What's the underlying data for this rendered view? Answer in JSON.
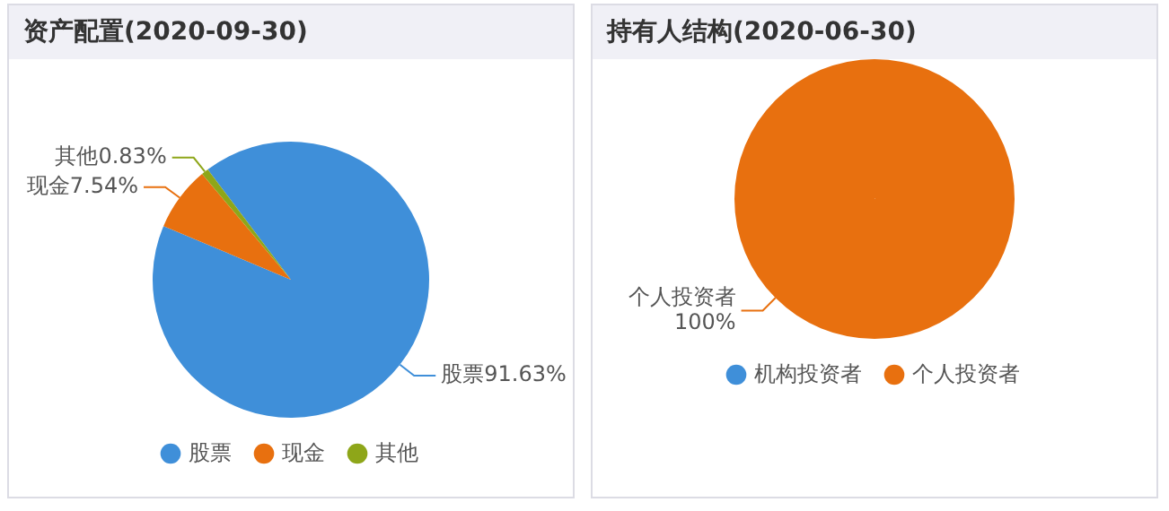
{
  "chart_data": [
    {
      "type": "pie",
      "title": "资产配置(2020-09-30)",
      "categories": [
        "股票",
        "现金",
        "其他"
      ],
      "values": [
        91.63,
        7.54,
        0.83
      ],
      "colors": [
        "#3f8fd9",
        "#e8700f",
        "#8ea619"
      ],
      "value_labels": [
        "91.63%",
        "7.54%",
        "0.83%"
      ],
      "legend": "bottom"
    },
    {
      "type": "pie",
      "title": "持有人结构(2020-06-30)",
      "categories": [
        "机构投资者",
        "个人投资者"
      ],
      "values": [
        0,
        100
      ],
      "colors": [
        "#3f8fd9",
        "#e8700f"
      ],
      "value_labels": [
        null,
        "100%"
      ],
      "legend": "bottom"
    }
  ]
}
